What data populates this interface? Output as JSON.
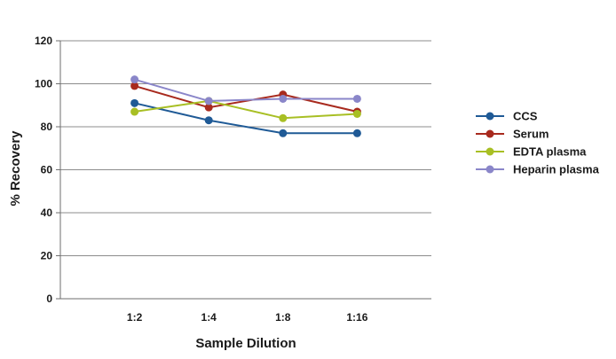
{
  "chart_data": {
    "type": "line",
    "categories": [
      "1:2",
      "1:4",
      "1:8",
      "1:16"
    ],
    "xlabel": "Sample Dilution",
    "ylabel": "% Recovery",
    "ylim": [
      0,
      120
    ],
    "yticks": [
      "0",
      "20",
      "40",
      "60",
      "80",
      "100",
      "120"
    ],
    "grid": true,
    "legend_position": "right",
    "series": [
      {
        "name": "CCS",
        "color": "#1f5a96",
        "values": [
          91,
          83,
          77,
          77
        ]
      },
      {
        "name": "Serum",
        "color": "#a82a1e",
        "values": [
          99,
          89,
          95,
          87
        ]
      },
      {
        "name": "EDTA plasma",
        "color": "#a8bf24",
        "values": [
          87,
          92,
          84,
          86
        ]
      },
      {
        "name": "Heparin plasma",
        "color": "#8a86c9",
        "values": [
          102,
          92,
          93,
          93
        ]
      }
    ]
  }
}
